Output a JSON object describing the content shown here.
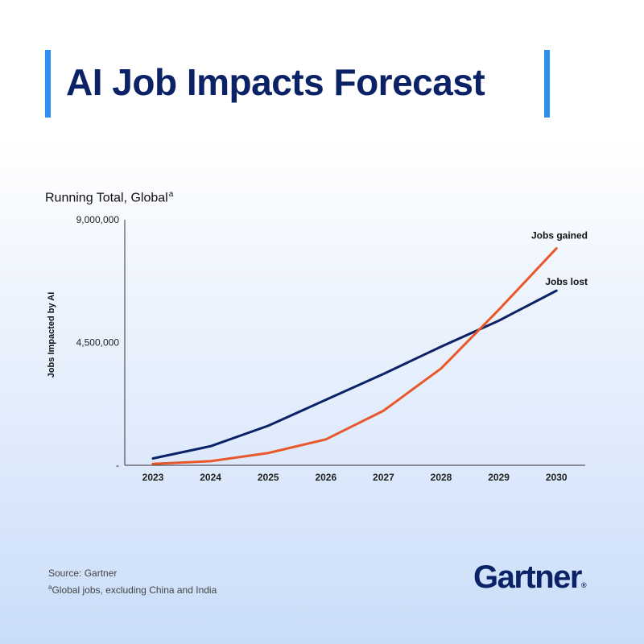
{
  "header": {
    "title": "AI Job Impacts Forecast"
  },
  "chart_data": {
    "type": "line",
    "title": "AI Job Impacts Forecast",
    "subtitle": "Running Total, Global",
    "subtitle_footnote_mark": "a",
    "ylabel": "Jobs Impacted by AI",
    "xlabel": "",
    "x": [
      "2023",
      "2024",
      "2025",
      "2026",
      "2027",
      "2028",
      "2029",
      "2030"
    ],
    "ylim": [
      0,
      9000000
    ],
    "yticks": [
      {
        "value": 0,
        "label": "-"
      },
      {
        "value": 4500000,
        "label": "4,500,000"
      },
      {
        "value": 9000000,
        "label": "9,000,000"
      }
    ],
    "grid": false,
    "legend": "inline labels at line ends",
    "series": [
      {
        "name": "Jobs lost",
        "color": "#0b2266",
        "values": [
          250000,
          700000,
          1450000,
          2400000,
          3350000,
          4350000,
          5300000,
          6400000
        ]
      },
      {
        "name": "Jobs gained",
        "color": "#e8582a",
        "values": [
          50000,
          150000,
          450000,
          950000,
          2000000,
          3550000,
          5700000,
          7950000
        ]
      }
    ]
  },
  "footer": {
    "source": "Source: Gartner",
    "note_mark": "a",
    "note": "Global jobs, excluding China and India"
  },
  "brand": {
    "logo_text": "Gartner",
    "registered_mark": "®"
  }
}
